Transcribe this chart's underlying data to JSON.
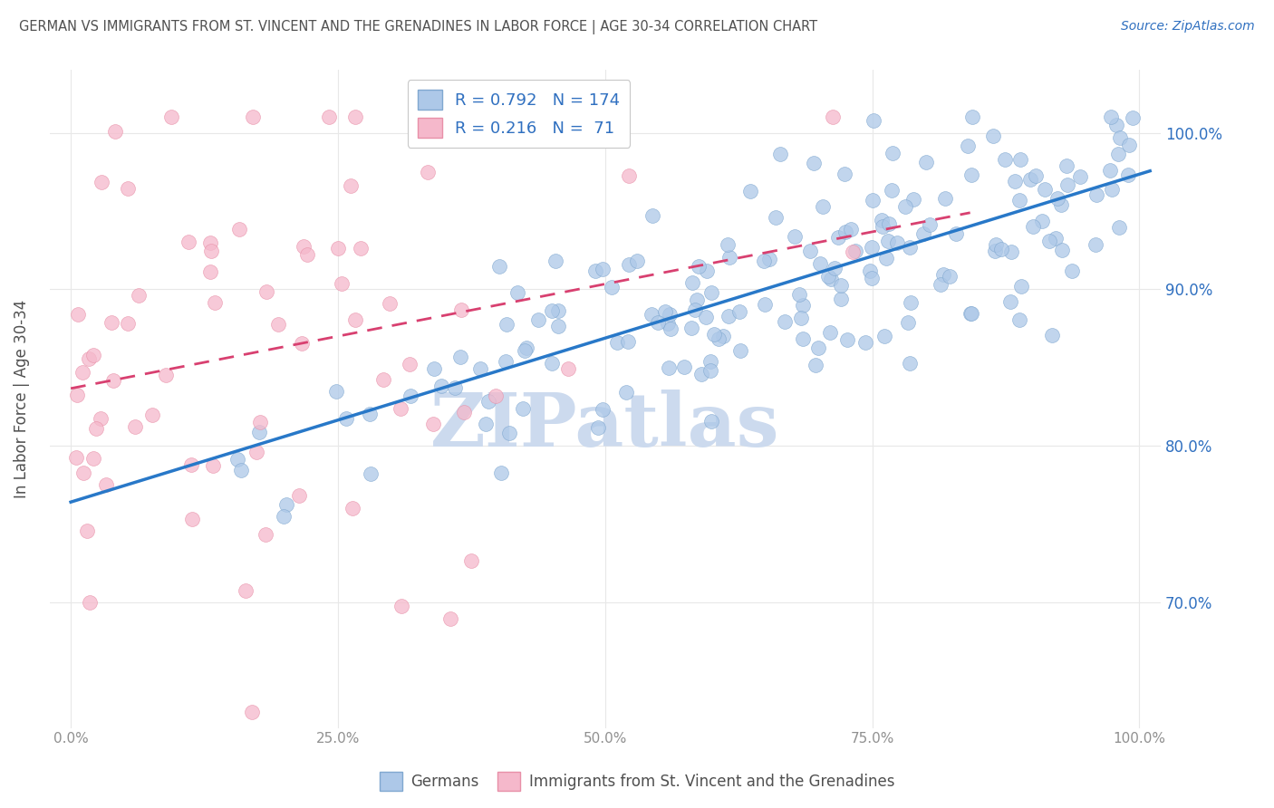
{
  "title": "GERMAN VS IMMIGRANTS FROM ST. VINCENT AND THE GRENADINES IN LABOR FORCE | AGE 30-34 CORRELATION CHART",
  "source": "Source: ZipAtlas.com",
  "ylabel": "In Labor Force | Age 30-34",
  "blue_R": 0.792,
  "blue_N": 174,
  "pink_R": 0.216,
  "pink_N": 71,
  "blue_color": "#adc8e8",
  "pink_color": "#f5b8cb",
  "blue_edge_color": "#80a8d0",
  "pink_edge_color": "#e890a8",
  "blue_line_color": "#2878c8",
  "pink_line_color": "#d84070",
  "watermark": "ZIPatlas",
  "watermark_color": "#ccdaee",
  "legend_label_blue": "Germans",
  "legend_label_pink": "Immigrants from St. Vincent and the Grenadines",
  "title_color": "#505050",
  "axis_color": "#909090",
  "text_color_blue": "#3070c0",
  "grid_color": "#e8e8e8",
  "yticks": [
    0.7,
    0.8,
    0.9,
    1.0
  ],
  "ytick_labels": [
    "70.0%",
    "80.0%",
    "90.0%",
    "100.0%"
  ],
  "xticks": [
    0.0,
    0.25,
    0.5,
    0.75,
    1.0
  ],
  "xtick_labels": [
    "0.0%",
    "25.0%",
    "50.0%",
    "75.0%",
    "100.0%"
  ],
  "xlim": [
    -0.02,
    1.02
  ],
  "ylim": [
    0.62,
    1.04
  ]
}
